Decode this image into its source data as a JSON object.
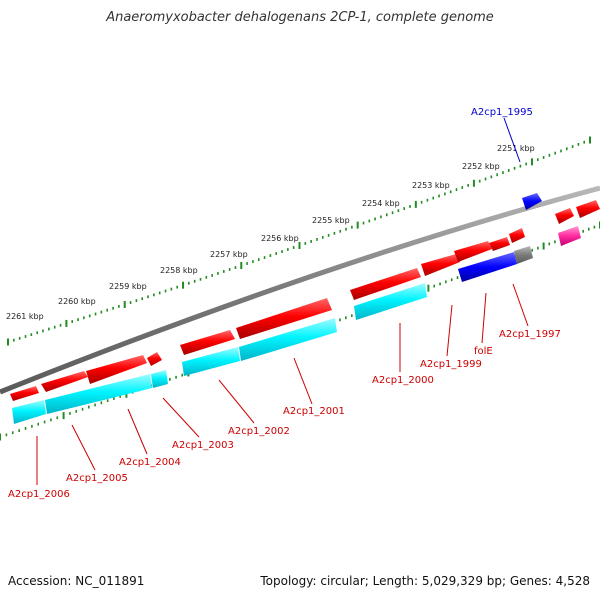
{
  "title": "Anaeromyxobacter dehalogenans 2CP-1, complete genome",
  "footer": {
    "accession": "Accession: NC_011891",
    "topology": "Topology: circular; Length: 5,029,329 bp; Genes: 4,528"
  },
  "kbp_labels": [
    "2251 kbp",
    "2252 kbp",
    "2253 kbp",
    "2254 kbp",
    "2255 kbp",
    "2256 kbp",
    "2257 kbp",
    "2258 kbp",
    "2259 kbp",
    "2260 kbp",
    "2261 kbp"
  ],
  "gene_labels": [
    "A2cp1_1995",
    "A2cp1_1997",
    "folE",
    "A2cp1_1999",
    "A2cp1_2000",
    "A2cp1_2001",
    "A2cp1_2002",
    "A2cp1_2003",
    "A2cp1_2004",
    "A2cp1_2005",
    "A2cp1_2006"
  ],
  "colors": {
    "forward_gene": "#ff0000",
    "cds": "#00ffff",
    "blue_gene": "#0000ff",
    "pink_gene": "#ff1493",
    "backbone": "#888888",
    "ticks": "#228b22",
    "label_red": "#cc0000",
    "label_blue": "#0000cc"
  }
}
